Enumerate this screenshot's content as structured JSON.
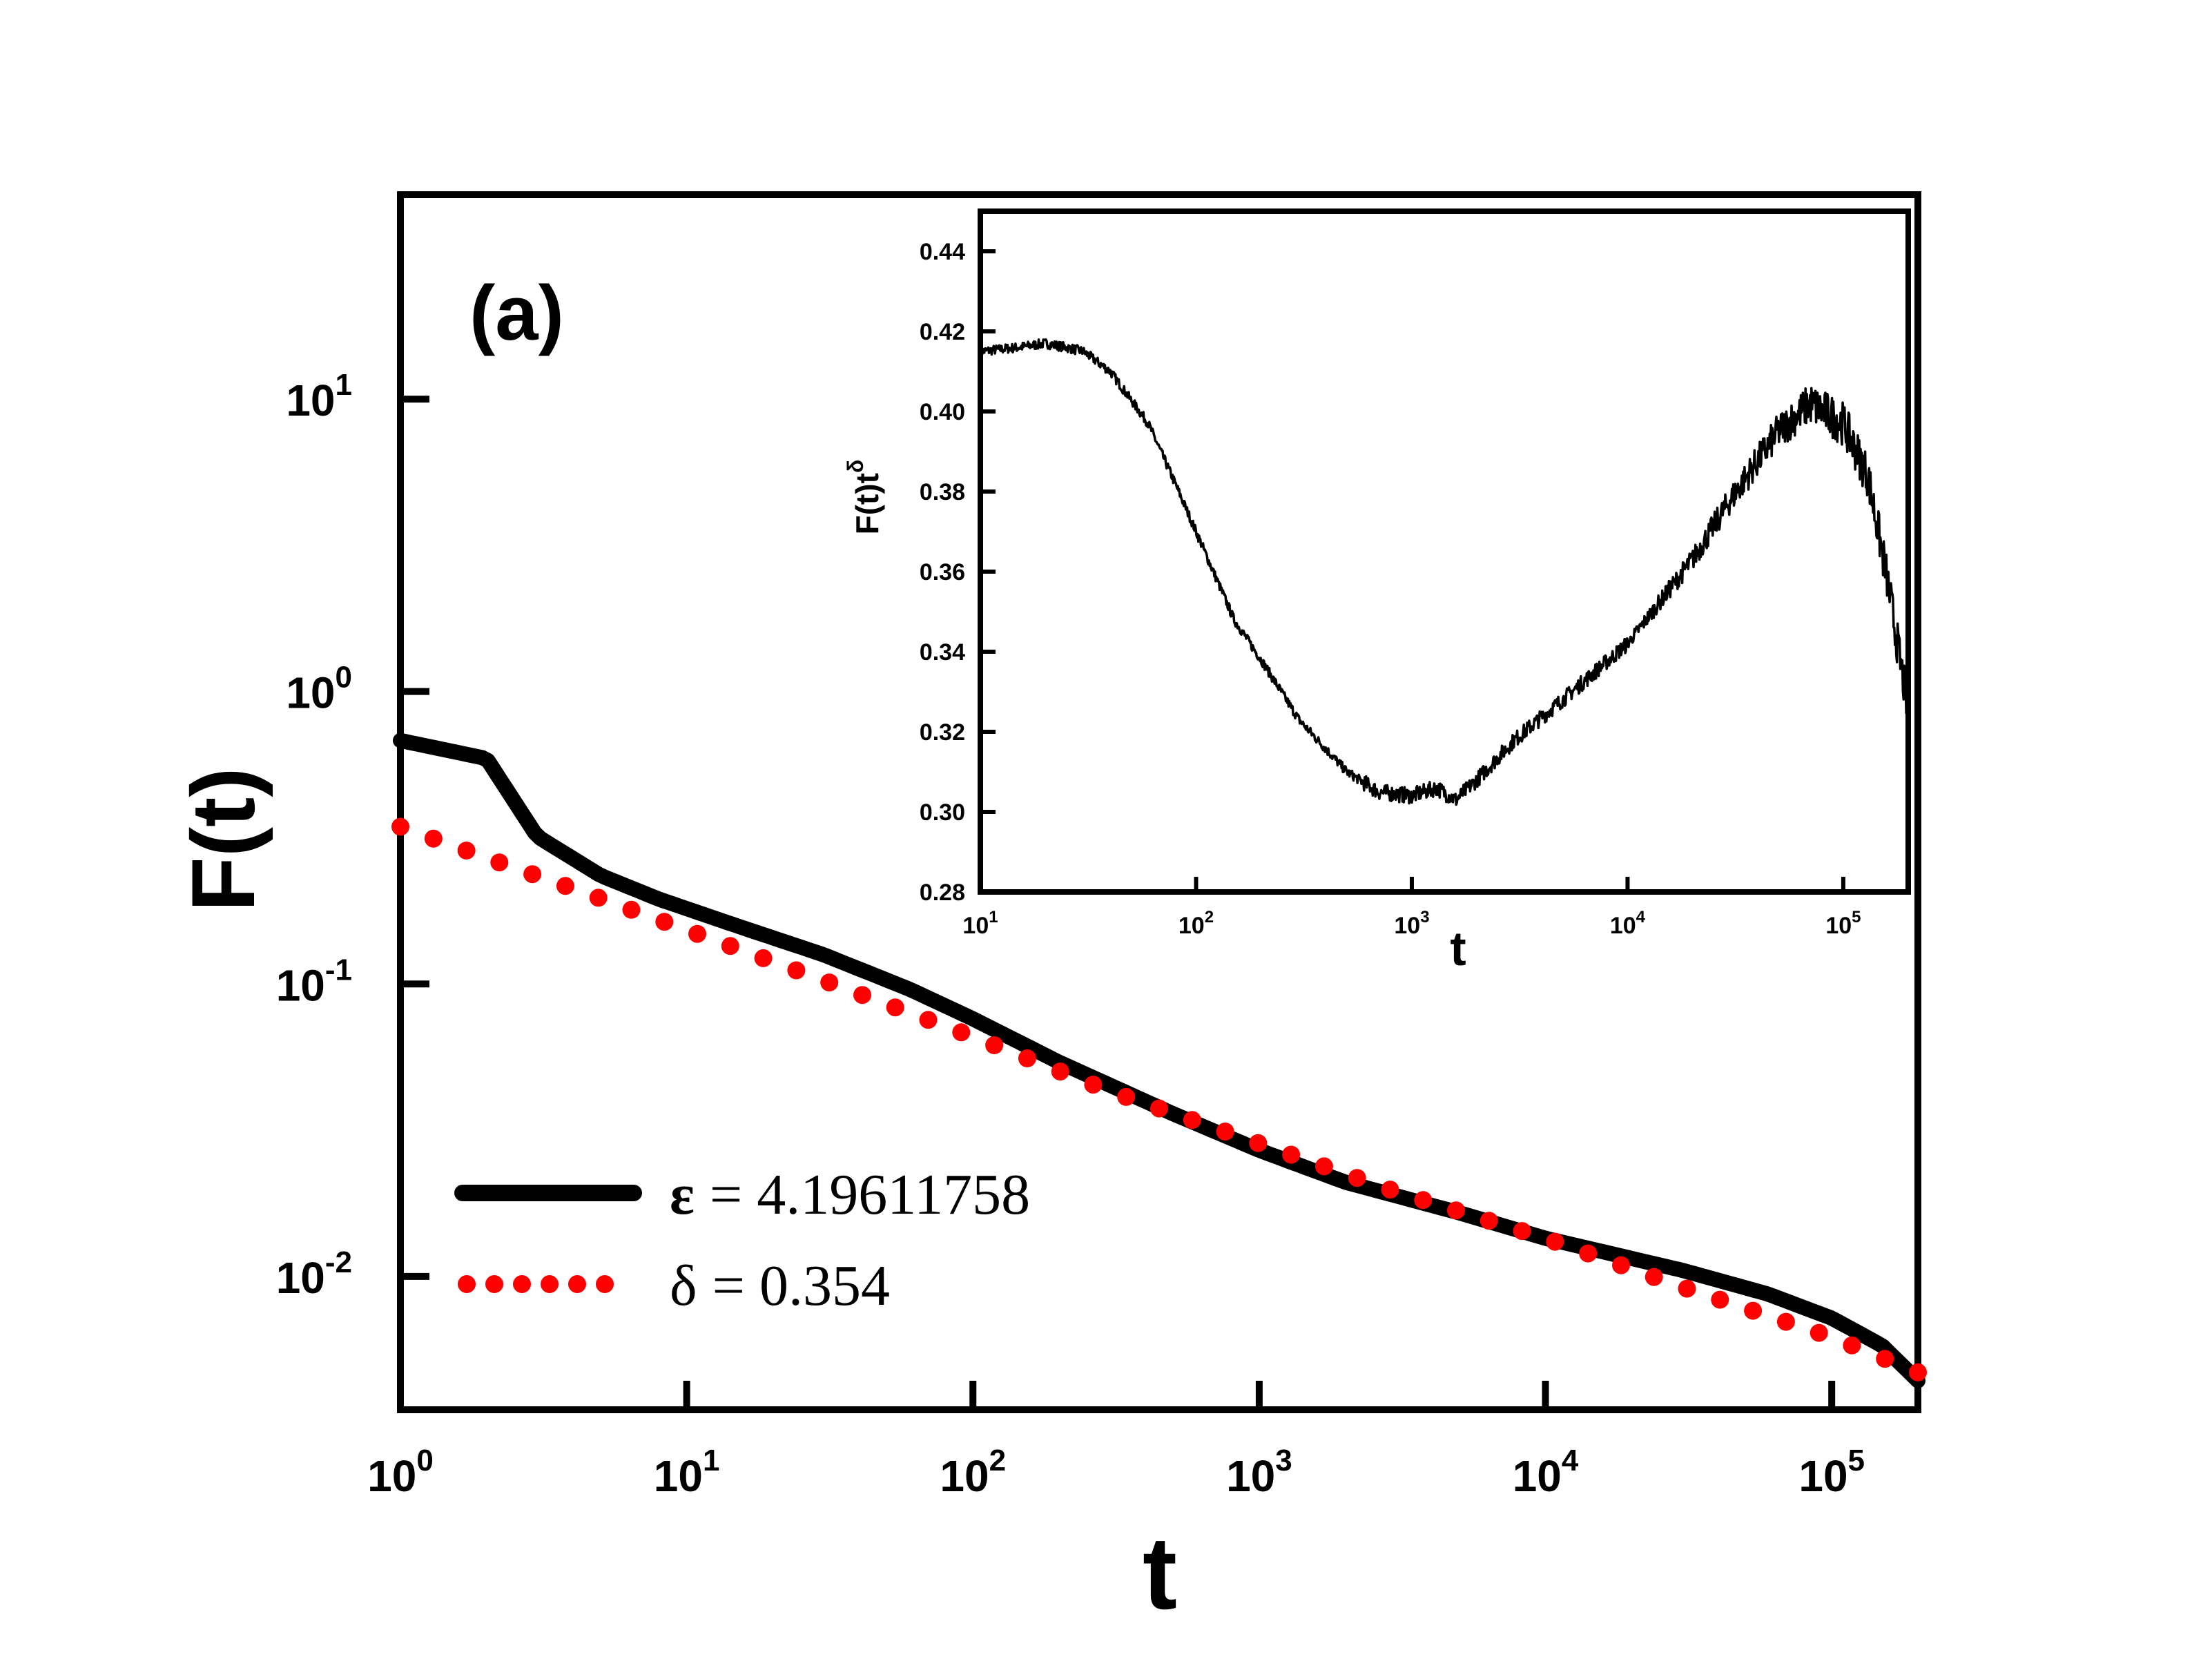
{
  "chart_data": [
    {
      "id": "main",
      "type": "line",
      "panel_label": "(a)",
      "xscale": "log",
      "yscale": "log",
      "xlabel": "t",
      "ylabel": "F(t)",
      "xlim": [
        1,
        200000
      ],
      "ylim": [
        0.0035,
        50
      ],
      "xticks": [
        {
          "value": 1,
          "base": "10",
          "exp": "0"
        },
        {
          "value": 10,
          "base": "10",
          "exp": "1"
        },
        {
          "value": 100,
          "base": "10",
          "exp": "2"
        },
        {
          "value": 1000,
          "base": "10",
          "exp": "3"
        },
        {
          "value": 10000,
          "base": "10",
          "exp": "4"
        },
        {
          "value": 100000,
          "base": "10",
          "exp": "5"
        }
      ],
      "yticks": [
        {
          "value": 0.01,
          "base": "10",
          "exp": "-2"
        },
        {
          "value": 0.1,
          "base": "10",
          "exp": "-1"
        },
        {
          "value": 1,
          "base": "10",
          "exp": "0"
        },
        {
          "value": 10,
          "base": "10",
          "exp": "1"
        }
      ],
      "series": [
        {
          "name": "ε = 4.19611758",
          "style": "solid",
          "color": "#000000",
          "x": [
            1,
            2,
            3,
            5,
            8,
            15,
            30,
            60,
            100,
            200,
            500,
            1000,
            2000,
            5000,
            10000,
            30000,
            60000,
            100000,
            150000,
            200000
          ],
          "y": [
            0.68,
            0.59,
            0.32,
            0.235,
            0.195,
            0.158,
            0.126,
            0.096,
            0.076,
            0.054,
            0.036,
            0.027,
            0.021,
            0.0165,
            0.0135,
            0.0105,
            0.0087,
            0.0072,
            0.0058,
            0.0044
          ]
        },
        {
          "name": "δ = 0.354",
          "style": "dotted",
          "color": "#ff0000",
          "x": [
            1,
            2,
            5,
            10,
            30,
            100,
            300,
            1000,
            3000,
            10000,
            30000,
            100000,
            200000
          ],
          "y": [
            0.345,
            0.27,
            0.196,
            0.153,
            0.103,
            0.066,
            0.043,
            0.0285,
            0.0195,
            0.0135,
            0.0092,
            0.0062,
            0.0047
          ]
        }
      ],
      "legend": {
        "position": "bottom-left",
        "entries": [
          {
            "symbol": "ε",
            "text": "= 4.19611758"
          },
          {
            "symbol": "δ",
            "text": "= 0.354"
          }
        ]
      }
    },
    {
      "id": "inset",
      "type": "line",
      "xscale": "log",
      "yscale": "linear",
      "xlabel": "t",
      "ylabel": {
        "base": "F(t)t",
        "sup": "δ"
      },
      "xlim": [
        10,
        200000
      ],
      "ylim": [
        0.28,
        0.45
      ],
      "xticks": [
        {
          "value": 10,
          "base": "10",
          "exp": "1"
        },
        {
          "value": 100,
          "base": "10",
          "exp": "2"
        },
        {
          "value": 1000,
          "base": "10",
          "exp": "3"
        },
        {
          "value": 10000,
          "base": "10",
          "exp": "4"
        },
        {
          "value": 100000,
          "base": "10",
          "exp": "5"
        }
      ],
      "yticks": [
        "0.28",
        "0.30",
        "0.32",
        "0.34",
        "0.36",
        "0.38",
        "0.40",
        "0.42",
        "0.44"
      ],
      "series": [
        {
          "name": "F(t)t^δ",
          "style": "solid",
          "color": "#000000",
          "x": [
            10,
            15,
            20,
            25,
            30,
            40,
            60,
            80,
            100,
            150,
            200,
            300,
            500,
            700,
            1000,
            1300,
            1600,
            2000,
            3000,
            5000,
            10000,
            20000,
            30000,
            50000,
            70000,
            100000,
            130000,
            160000,
            200000
          ],
          "y": [
            0.415,
            0.416,
            0.417,
            0.416,
            0.415,
            0.41,
            0.397,
            0.382,
            0.37,
            0.348,
            0.338,
            0.323,
            0.31,
            0.305,
            0.304,
            0.306,
            0.303,
            0.308,
            0.318,
            0.328,
            0.342,
            0.363,
            0.378,
            0.395,
            0.402,
            0.397,
            0.384,
            0.358,
            0.325
          ],
          "noise_region": {
            "x_from": 10000,
            "x_to": 200000,
            "amplitude": 0.004
          }
        }
      ]
    }
  ]
}
